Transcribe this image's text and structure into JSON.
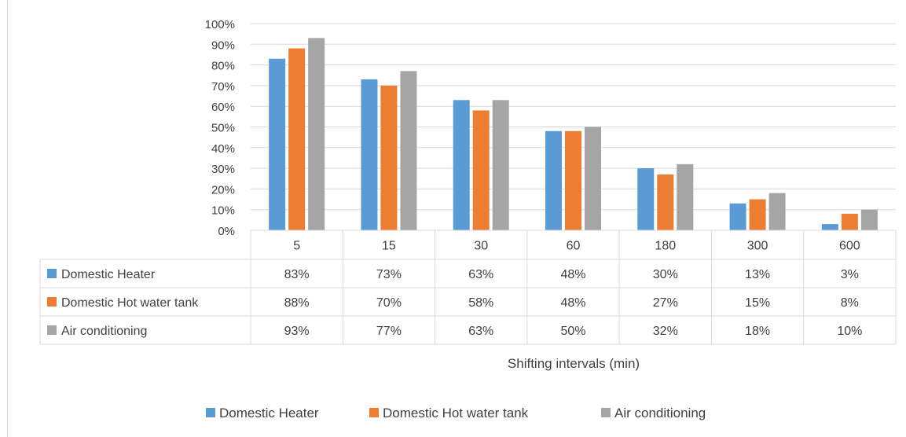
{
  "chart_data": {
    "type": "bar",
    "title": "",
    "xlabel": "Shifting intervals (min)",
    "ylabel": "",
    "ylim": [
      0,
      100
    ],
    "y_tick_labels": [
      "0%",
      "10%",
      "20%",
      "30%",
      "40%",
      "50%",
      "60%",
      "70%",
      "80%",
      "90%",
      "100%"
    ],
    "grid": true,
    "legend_position": "bottom",
    "data_table": true,
    "categories": [
      "5",
      "15",
      "30",
      "60",
      "180",
      "300",
      "600"
    ],
    "series": [
      {
        "name": "Domestic Heater",
        "color": "#5b9bd5",
        "values": [
          83,
          73,
          63,
          48,
          30,
          13,
          3
        ],
        "labels": [
          "83%",
          "73%",
          "63%",
          "48%",
          "30%",
          "13%",
          "3%"
        ]
      },
      {
        "name": "Domestic Hot water tank",
        "color": "#ed7d31",
        "values": [
          88,
          70,
          58,
          48,
          27,
          15,
          8
        ],
        "labels": [
          "88%",
          "70%",
          "58%",
          "48%",
          "27%",
          "15%",
          "8%"
        ]
      },
      {
        "name": "Air conditioning",
        "color": "#a5a5a5",
        "values": [
          93,
          77,
          63,
          50,
          32,
          18,
          10
        ],
        "labels": [
          "93%",
          "77%",
          "63%",
          "50%",
          "32%",
          "18%",
          "10%"
        ]
      }
    ]
  }
}
